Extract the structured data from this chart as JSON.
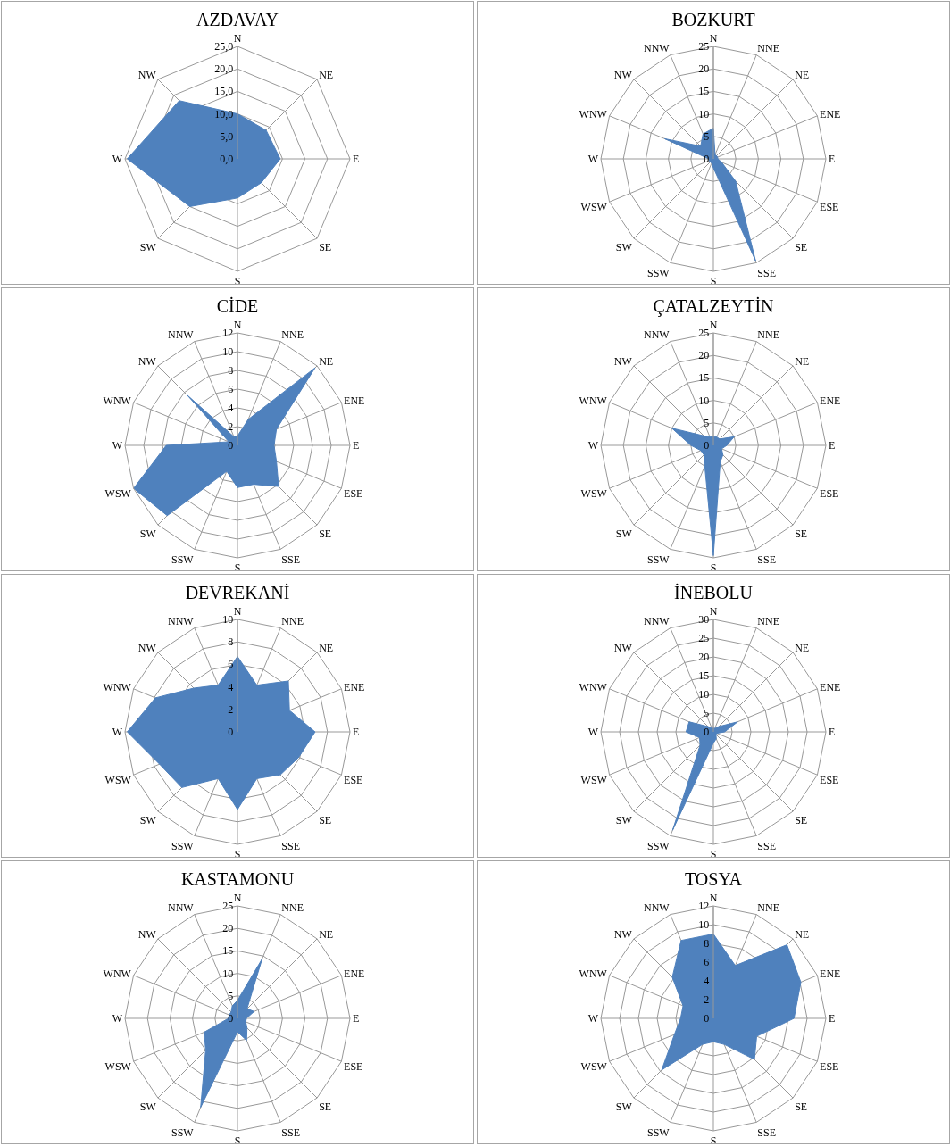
{
  "chart_data": [
    {
      "type": "radar",
      "title": "AZDAVAY",
      "categories": [
        "N",
        "NE",
        "E",
        "SE",
        "S",
        "SW",
        "W",
        "NW"
      ],
      "grid": true,
      "ylim": [
        0,
        25
      ],
      "yticks": [
        {
          "value": 0,
          "label": "0,0"
        },
        {
          "value": 5,
          "label": "5,0"
        },
        {
          "value": 10,
          "label": "10,0"
        },
        {
          "value": 15,
          "label": "15,0"
        },
        {
          "value": 20,
          "label": "20,0"
        },
        {
          "value": 25,
          "label": "25,0"
        }
      ],
      "series": [
        {
          "color": "#4f81bd",
          "values": [
            10,
            9,
            9.5,
            7.5,
            8.7,
            15,
            24.5,
            18.3
          ]
        }
      ]
    },
    {
      "type": "radar",
      "title": "BOZKURT",
      "categories": [
        "N",
        "NNE",
        "NE",
        "ENE",
        "E",
        "ESE",
        "SE",
        "SSE",
        "S",
        "SSW",
        "SW",
        "WSW",
        "W",
        "WNW",
        "NW",
        "NNW"
      ],
      "grid": true,
      "ylim": [
        0,
        25
      ],
      "yticks": [
        0,
        5,
        10,
        15,
        20,
        25
      ],
      "series": [
        {
          "color": "#4f81bd",
          "values": [
            6.8,
            1,
            1,
            1,
            1,
            2,
            7,
            24.5,
            2,
            1,
            1,
            1,
            1,
            11.7,
            4,
            6
          ]
        }
      ]
    },
    {
      "type": "radar",
      "title": "CİDE",
      "categories": [
        "N",
        "NNE",
        "NE",
        "ENE",
        "E",
        "ESE",
        "SE",
        "SSE",
        "S",
        "SSW",
        "SW",
        "WSW",
        "W",
        "WNW",
        "NW",
        "NNW"
      ],
      "grid": true,
      "ylim": [
        0,
        12
      ],
      "yticks": [
        0,
        2,
        4,
        6,
        8,
        10,
        12
      ],
      "series": [
        {
          "color": "#4f81bd",
          "values": [
            1,
            3,
            11.7,
            4.5,
            3.9,
            4.5,
            6.2,
            4.5,
            4.5,
            3,
            10.6,
            12,
            7.6,
            1,
            7.6,
            1
          ]
        }
      ]
    },
    {
      "type": "radar",
      "title": "ÇATALZEYTİN",
      "categories": [
        "N",
        "NNE",
        "NE",
        "ENE",
        "E",
        "ESE",
        "SE",
        "SSE",
        "S",
        "SSW",
        "SW",
        "WSW",
        "W",
        "WNW",
        "NW",
        "NNW"
      ],
      "grid": true,
      "ylim": [
        0,
        25
      ],
      "yticks": [
        0,
        5,
        10,
        15,
        20,
        25
      ],
      "series": [
        {
          "color": "#4f81bd",
          "values": [
            2,
            2,
            2,
            5,
            3,
            2,
            3,
            4,
            24.5,
            5,
            3,
            3,
            5,
            10,
            3,
            2
          ]
        }
      ]
    },
    {
      "type": "radar",
      "title": "DEVREKANİ",
      "categories": [
        "N",
        "NNE",
        "NE",
        "ENE",
        "E",
        "ESE",
        "SE",
        "SSE",
        "S",
        "SSW",
        "SW",
        "WSW",
        "W",
        "WNW",
        "NW",
        "NNW"
      ],
      "grid": true,
      "ylim": [
        0,
        10
      ],
      "yticks": [
        0,
        2,
        4,
        6,
        8,
        10
      ],
      "series": [
        {
          "color": "#4f81bd",
          "values": [
            6.7,
            4.5,
            6.4,
            5,
            6.9,
            5.9,
            5.4,
            4.5,
            6.9,
            4.5,
            7,
            7.5,
            9.8,
            7.9,
            5.5,
            4.5
          ]
        }
      ]
    },
    {
      "type": "radar",
      "title": "İNEBOLU",
      "categories": [
        "N",
        "NNE",
        "NE",
        "ENE",
        "E",
        "ESE",
        "SE",
        "SSE",
        "S",
        "SSW",
        "SW",
        "WSW",
        "W",
        "WNW",
        "NW",
        "NNW"
      ],
      "grid": true,
      "ylim": [
        0,
        30
      ],
      "yticks": [
        0,
        5,
        10,
        15,
        20,
        25,
        30
      ],
      "series": [
        {
          "color": "#4f81bd",
          "values": [
            1,
            1,
            2,
            7,
            3,
            1,
            1,
            2,
            3,
            28.4,
            5,
            4,
            7.3,
            7,
            2,
            1
          ]
        }
      ]
    },
    {
      "type": "radar",
      "title": "KASTAMONU",
      "categories": [
        "N",
        "NNE",
        "NE",
        "ENE",
        "E",
        "ESE",
        "SE",
        "SSE",
        "S",
        "SSW",
        "SW",
        "WSW",
        "W",
        "WNW",
        "NW",
        "NNW"
      ],
      "grid": true,
      "ylim": [
        0,
        25
      ],
      "yticks": [
        0,
        5,
        10,
        15,
        20,
        25
      ],
      "series": [
        {
          "color": "#4f81bd",
          "values": [
            4,
            14.3,
            3,
            4,
            2,
            2,
            3,
            5.3,
            3,
            21.4,
            10,
            8,
            2,
            2,
            2,
            3
          ]
        }
      ]
    },
    {
      "type": "radar",
      "title": "TOSYA",
      "categories": [
        "N",
        "NNE",
        "NE",
        "ENE",
        "E",
        "ESE",
        "SE",
        "SSE",
        "S",
        "SSW",
        "SW",
        "WSW",
        "W",
        "WNW",
        "NW",
        "NNW"
      ],
      "grid": true,
      "ylim": [
        0,
        12
      ],
      "yticks": [
        0,
        2,
        4,
        6,
        8,
        10,
        12
      ],
      "series": [
        {
          "color": "#4f81bd",
          "values": [
            9,
            6.1,
            11.1,
            10.1,
            8.6,
            5,
            6.2,
            3,
            2.5,
            3,
            7.8,
            4.5,
            3.5,
            3.5,
            6.2,
            9
          ]
        }
      ]
    }
  ]
}
